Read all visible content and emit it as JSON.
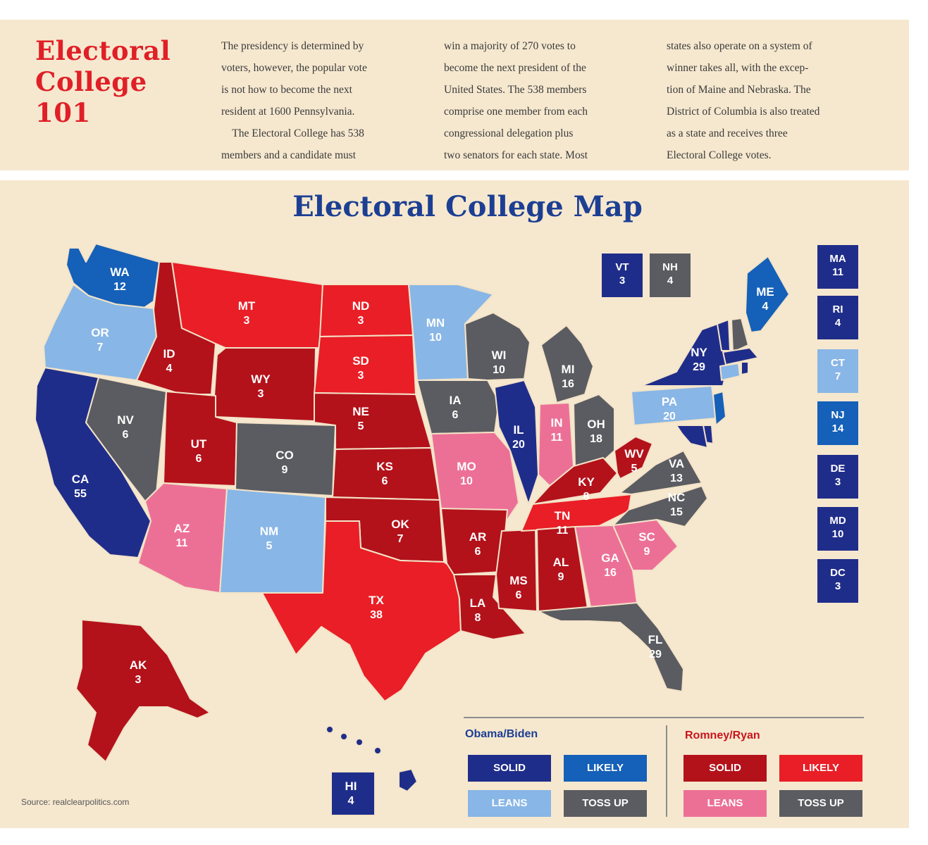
{
  "header": {
    "title_lines": [
      "Electoral",
      "College",
      "101"
    ],
    "paragraphs": [
      "The presidency is determined by voters, however, the popular vote is not how to become the next resident at 1600 Pennsylvania.",
      "The Electoral College has 538 members and a candidate must win a majority of 270 votes to become the next president of the United States. The 538 members comprise one member from each congressional delegation plus two senators for each state. Most states also operate on a system of winner takes all, with the exception of Maine and Nebraska. The District of Columbia is also treated as a state and receives three Electoral College votes."
    ],
    "columns": [
      [
        "The presidency is determined by",
        "voters, however, the popular vote",
        "is not how to become the next",
        "resident at 1600 Pennsylvania.",
        "    The Electoral College has 538",
        "members and a candidate must"
      ],
      [
        "win a majority of 270 votes to",
        "become the next president of the",
        "United States. The 538 members",
        "comprise one member from each",
        "congressional delegation plus",
        "two senators for each state. Most"
      ],
      [
        "states also operate on a system of",
        "winner takes all, with the excep-",
        "tion of Maine and Nebraska. The",
        "District of Columbia is also treated",
        "as a state and receives three",
        "Electoral College votes."
      ]
    ]
  },
  "map": {
    "title": "Electoral College Map",
    "colors": {
      "dem_solid": "#1f2d8a",
      "dem_likely": "#1560b8",
      "dem_leans": "#88b6e6",
      "toss_up": "#5b5c61",
      "rep_solid": "#b3121b",
      "rep_likely": "#e91e26",
      "rep_leans": "#ec7096"
    },
    "states": [
      {
        "abbr": "WA",
        "votes": "12",
        "status": "dem_likely"
      },
      {
        "abbr": "OR",
        "votes": "7",
        "status": "dem_leans"
      },
      {
        "abbr": "CA",
        "votes": "55",
        "status": "dem_solid"
      },
      {
        "abbr": "NV",
        "votes": "6",
        "status": "toss_up"
      },
      {
        "abbr": "ID",
        "votes": "4",
        "status": "rep_solid"
      },
      {
        "abbr": "MT",
        "votes": "3",
        "status": "rep_likely"
      },
      {
        "abbr": "WY",
        "votes": "3",
        "status": "rep_solid"
      },
      {
        "abbr": "UT",
        "votes": "6",
        "status": "rep_solid"
      },
      {
        "abbr": "AZ",
        "votes": "11",
        "status": "rep_leans"
      },
      {
        "abbr": "CO",
        "votes": "9",
        "status": "toss_up"
      },
      {
        "abbr": "NM",
        "votes": "5",
        "status": "dem_leans"
      },
      {
        "abbr": "ND",
        "votes": "3",
        "status": "rep_likely"
      },
      {
        "abbr": "SD",
        "votes": "3",
        "status": "rep_likely"
      },
      {
        "abbr": "NE",
        "votes": "5",
        "status": "rep_solid"
      },
      {
        "abbr": "KS",
        "votes": "6",
        "status": "rep_solid"
      },
      {
        "abbr": "OK",
        "votes": "7",
        "status": "rep_solid"
      },
      {
        "abbr": "TX",
        "votes": "38",
        "status": "rep_likely"
      },
      {
        "abbr": "MN",
        "votes": "10",
        "status": "dem_leans"
      },
      {
        "abbr": "IA",
        "votes": "6",
        "status": "toss_up"
      },
      {
        "abbr": "MO",
        "votes": "10",
        "status": "rep_leans"
      },
      {
        "abbr": "AR",
        "votes": "6",
        "status": "rep_solid"
      },
      {
        "abbr": "LA",
        "votes": "8",
        "status": "rep_solid"
      },
      {
        "abbr": "WI",
        "votes": "10",
        "status": "toss_up"
      },
      {
        "abbr": "IL",
        "votes": "20",
        "status": "dem_solid"
      },
      {
        "abbr": "MS",
        "votes": "6",
        "status": "rep_solid"
      },
      {
        "abbr": "MI",
        "votes": "16",
        "status": "toss_up"
      },
      {
        "abbr": "IN",
        "votes": "11",
        "status": "rep_leans"
      },
      {
        "abbr": "OH",
        "votes": "18",
        "status": "toss_up"
      },
      {
        "abbr": "KY",
        "votes": "8",
        "status": "rep_solid"
      },
      {
        "abbr": "TN",
        "votes": "11",
        "status": "rep_likely"
      },
      {
        "abbr": "AL",
        "votes": "9",
        "status": "rep_solid"
      },
      {
        "abbr": "GA",
        "votes": "16",
        "status": "rep_leans"
      },
      {
        "abbr": "FL",
        "votes": "29",
        "status": "toss_up"
      },
      {
        "abbr": "SC",
        "votes": "9",
        "status": "rep_leans"
      },
      {
        "abbr": "NC",
        "votes": "15",
        "status": "toss_up"
      },
      {
        "abbr": "VA",
        "votes": "13",
        "status": "toss_up"
      },
      {
        "abbr": "WV",
        "votes": "5",
        "status": "rep_solid"
      },
      {
        "abbr": "PA",
        "votes": "20",
        "status": "dem_leans"
      },
      {
        "abbr": "NY",
        "votes": "29",
        "status": "dem_solid"
      },
      {
        "abbr": "ME",
        "votes": "4",
        "status": "dem_likely"
      },
      {
        "abbr": "AK",
        "votes": "3",
        "status": "rep_solid"
      },
      {
        "abbr": "HI",
        "votes": "4",
        "status": "dem_solid"
      }
    ],
    "small_states": [
      {
        "abbr": "VT",
        "votes": "3",
        "status": "dem_solid"
      },
      {
        "abbr": "NH",
        "votes": "4",
        "status": "toss_up"
      },
      {
        "abbr": "MA",
        "votes": "11",
        "status": "dem_solid"
      },
      {
        "abbr": "RI",
        "votes": "4",
        "status": "dem_solid"
      },
      {
        "abbr": "CT",
        "votes": "7",
        "status": "dem_leans"
      },
      {
        "abbr": "NJ",
        "votes": "14",
        "status": "dem_likely"
      },
      {
        "abbr": "DE",
        "votes": "3",
        "status": "dem_solid"
      },
      {
        "abbr": "MD",
        "votes": "10",
        "status": "dem_solid"
      },
      {
        "abbr": "DC",
        "votes": "3",
        "status": "dem_solid"
      }
    ]
  },
  "legend": {
    "dem_title": "Obama/Biden",
    "rep_title": "Romney/Ryan",
    "dem_items": [
      {
        "label": "SOLID",
        "status": "dem_solid"
      },
      {
        "label": "LIKELY",
        "status": "dem_likely"
      },
      {
        "label": "LEANS",
        "status": "dem_leans"
      },
      {
        "label": "TOSS UP",
        "status": "toss_up"
      }
    ],
    "rep_items": [
      {
        "label": "SOLID",
        "status": "rep_solid"
      },
      {
        "label": "LIKELY",
        "status": "rep_likely"
      },
      {
        "label": "LEANS",
        "status": "rep_leans"
      },
      {
        "label": "TOSS UP",
        "status": "toss_up"
      }
    ]
  },
  "source": "Source: realclearpolitics.com"
}
